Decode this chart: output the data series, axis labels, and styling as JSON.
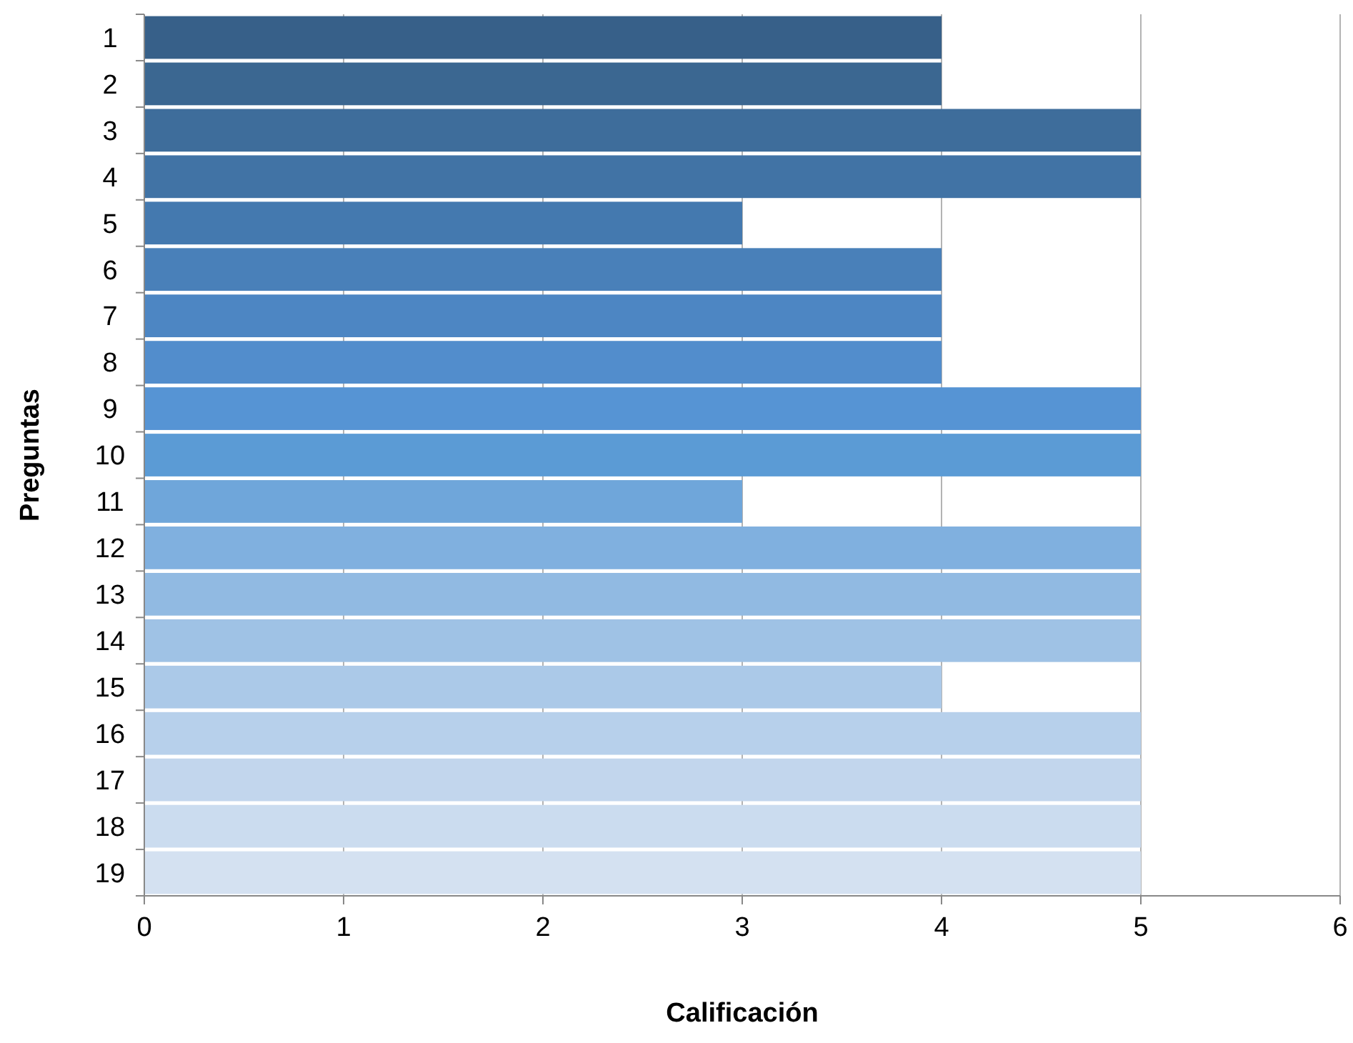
{
  "chart_data": {
    "type": "bar",
    "orientation": "horizontal",
    "xlabel": "Calificación",
    "ylabel": "Preguntas",
    "categories": [
      "1",
      "2",
      "3",
      "4",
      "5",
      "6",
      "7",
      "8",
      "9",
      "10",
      "11",
      "12",
      "13",
      "14",
      "15",
      "16",
      "17",
      "18",
      "19"
    ],
    "values": [
      4,
      4,
      5,
      5,
      3,
      4,
      4,
      4,
      5,
      5,
      3,
      5,
      5,
      5,
      4,
      5,
      5,
      5,
      5
    ],
    "colors": [
      "#376089",
      "#3b6791",
      "#3e6d9b",
      "#4173a5",
      "#4479af",
      "#4980b9",
      "#4d86c3",
      "#528dcc",
      "#5694d4",
      "#5b9bd5",
      "#6fa6da",
      "#80b0df",
      "#91bae2",
      "#9fc2e5",
      "#abc9e8",
      "#b7d0eb",
      "#c2d6ed",
      "#cbdcef",
      "#d4e1f1"
    ],
    "xlim": [
      0,
      6
    ],
    "xticks": [
      0,
      1,
      2,
      3,
      4,
      5,
      6
    ],
    "grid": "x"
  }
}
